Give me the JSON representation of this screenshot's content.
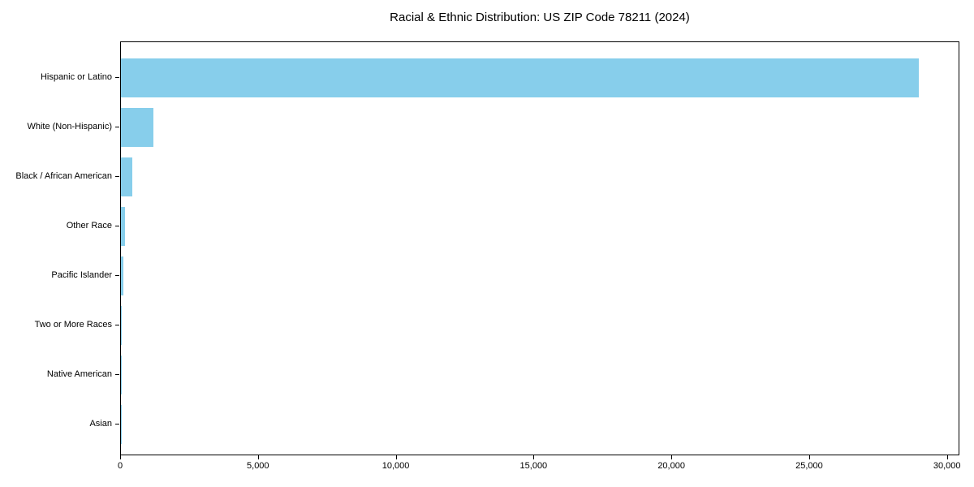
{
  "chart_data": {
    "type": "bar",
    "orientation": "horizontal",
    "title": "Racial & Ethnic Distribution: US ZIP Code 78211 (2024)",
    "categories": [
      "Hispanic or Latino",
      "White (Non-Hispanic)",
      "Black / African American",
      "Other Race",
      "Pacific Islander",
      "Two or More Races",
      "Native American",
      "Asian"
    ],
    "values": [
      29000,
      1180,
      420,
      140,
      90,
      40,
      10,
      5
    ],
    "bar_color": "#87CEEB",
    "xlabel": "",
    "ylabel": "",
    "xlim": [
      0,
      30450
    ],
    "x_ticks": [
      0,
      5000,
      10000,
      15000,
      20000,
      25000,
      30000
    ],
    "x_tick_labels": [
      "0",
      "5,000",
      "10,000",
      "15,000",
      "20,000",
      "25,000",
      "30,000"
    ],
    "grid": false,
    "legend": "none",
    "sort_order": "descending",
    "background_color": "#ffffff",
    "axis_color": "#000000"
  }
}
